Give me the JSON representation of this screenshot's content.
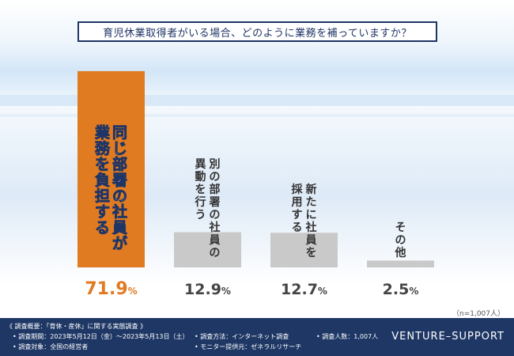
{
  "title": "育児休業取得者がいる場合、どのように業務を補っていますか？",
  "chart_data": {
    "type": "bar",
    "categories": [
      "同じ部署の社員が業務を負担する",
      "別の部署の社員の異動を行う",
      "新たに社員を採用する",
      "その他"
    ],
    "label_lines": [
      [
        "同じ部署の社員が",
        "業務を負担する"
      ],
      [
        "別の部署の社員の",
        "異動を行う"
      ],
      [
        "新たに社員を",
        "採用する"
      ],
      [
        "その他"
      ]
    ],
    "values": [
      71.9,
      12.9,
      12.7,
      2.5
    ],
    "value_labels": [
      {
        "num": "71.9",
        "unit": "%"
      },
      {
        "num": "12.9",
        "unit": "%"
      },
      {
        "num": "12.7",
        "unit": "%"
      },
      {
        "num": "2.5",
        "unit": "%"
      }
    ],
    "highlight_color": "#e07b22",
    "bar_color": "#c9c9c9",
    "ylim": [
      0,
      100
    ]
  },
  "sample_note": "（n=1,007人）",
  "footer": {
    "overview": "《 調査概要：「育休・産休」に関する実態調査 》",
    "period": "• 調査期間：2023年5月12日（金）〜2023年5月13日（土）",
    "method": "• 調査方法：インターネット調査",
    "count": "• 調査人数：1,007人",
    "target": "• 調査対象：全国の経営者",
    "provider": "• モニター提供元：ゼネラルリサーチ",
    "brand": "VENTURE–SUPPORT"
  }
}
